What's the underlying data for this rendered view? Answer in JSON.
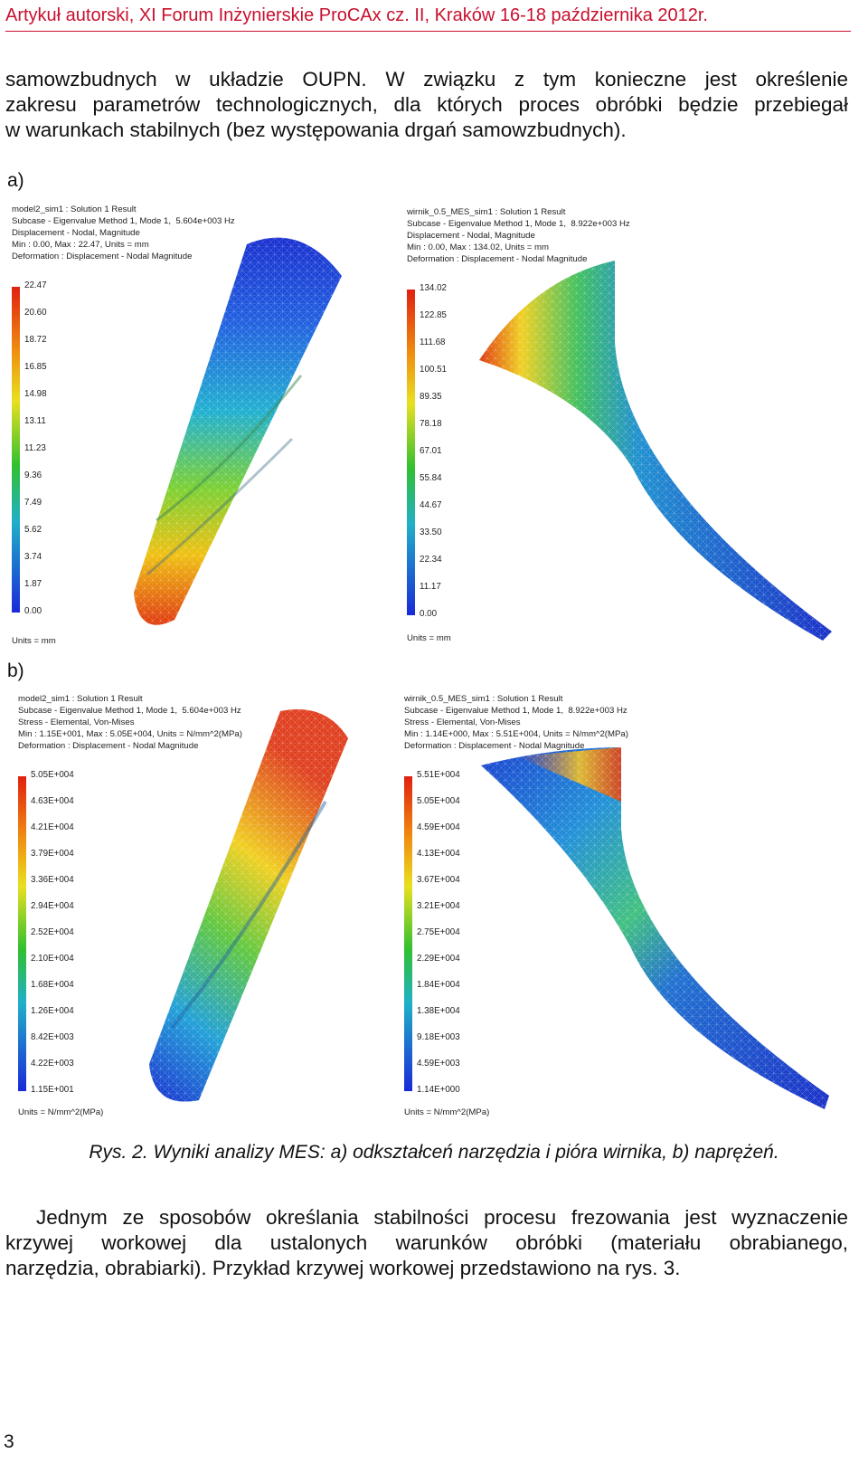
{
  "header": {
    "title": "Artykuł autorski, XI Forum Inżynierskie ProCAx cz. II, Kraków 16-18 października 2012r."
  },
  "intro_paragraph": {
    "lines": [
      "samowzbudnych w układzie OUPN. W związku z tym konieczne jest określenie",
      "zakresu parametrów technologicznych, dla których proces obróbki będzie przebiegał",
      "w warunkach stabilnych (bez występowania drgań samowzbudnych)."
    ]
  },
  "figure": {
    "label_a": "a)",
    "label_b": "b)",
    "panels": [
      {
        "id": "a-tool",
        "header": [
          "model2_sim1 : Solution 1 Result",
          "Subcase - Eigenvalue Method 1, Mode 1,  5.604e+003 Hz",
          "Displacement - Nodal, Magnitude",
          "Min : 0.00, Max : 22.47, Units = mm",
          "Deformation : Displacement - Nodal Magnitude"
        ],
        "scale": [
          "22.47",
          "20.60",
          "18.72",
          "16.85",
          "14.98",
          "13.11",
          "11.23",
          "9.36",
          "7.49",
          "5.62",
          "3.74",
          "1.87",
          "0.00"
        ],
        "units": "Units = mm"
      },
      {
        "id": "a-blade",
        "header": [
          "wirnik_0.5_MES_sim1 : Solution 1 Result",
          "Subcase - Eigenvalue Method 1, Mode 1,  8.922e+003 Hz",
          "Displacement - Nodal, Magnitude",
          "Min : 0.00, Max : 134.02, Units = mm",
          "Deformation : Displacement - Nodal Magnitude"
        ],
        "scale": [
          "134.02",
          "122.85",
          "111.68",
          "100.51",
          "89.35",
          "78.18",
          "67.01",
          "55.84",
          "44.67",
          "33.50",
          "22.34",
          "11.17",
          "0.00"
        ],
        "units": "Units = mm"
      },
      {
        "id": "b-tool",
        "header": [
          "model2_sim1 : Solution 1 Result",
          "Subcase - Eigenvalue Method 1, Mode 1,  5.604e+003 Hz",
          "Stress - Elemental, Von-Mises",
          "Min : 1.15E+001, Max : 5.05E+004, Units = N/mm^2(MPa)",
          "Deformation : Displacement - Nodal Magnitude"
        ],
        "scale": [
          "5.05E+004",
          "4.63E+004",
          "4.21E+004",
          "3.79E+004",
          "3.36E+004",
          "2.94E+004",
          "2.52E+004",
          "2.10E+004",
          "1.68E+004",
          "1.26E+004",
          "8.42E+003",
          "4.22E+003",
          "1.15E+001"
        ],
        "units": "Units = N/mm^2(MPa)"
      },
      {
        "id": "b-blade",
        "header": [
          "wirnik_0.5_MES_sim1 : Solution 1 Result",
          "Subcase - Eigenvalue Method 1, Mode 1,  8.922e+003 Hz",
          "Stress - Elemental, Von-Mises",
          "Min : 1.14E+000, Max : 5.51E+004, Units = N/mm^2(MPa)",
          "Deformation : Displacement - Nodal Magnitude"
        ],
        "scale": [
          "5.51E+004",
          "5.05E+004",
          "4.59E+004",
          "4.13E+004",
          "3.67E+004",
          "3.21E+004",
          "2.75E+004",
          "2.29E+004",
          "1.84E+004",
          "1.38E+004",
          "9.18E+003",
          "4.59E+003",
          "1.14E+000"
        ],
        "units": "Units = N/mm^2(MPa)"
      }
    ],
    "caption": "Rys. 2. Wyniki analizy MES: a) odkształceń narzędzia i pióra wirnika, b) naprężeń."
  },
  "body_paragraph": {
    "lines": [
      "Jednym ze sposobów określania stabilności procesu frezowania jest wyznaczenie",
      "krzywej workowej dla ustalonych warunków obróbki (materiału obrabianego,",
      "narzędzia, obrabiarki). Przykład krzywej workowej przedstawiono na rys. 3."
    ]
  },
  "page_number": "3",
  "colors": {
    "header": "#c8102e",
    "scale_top": "#e02010",
    "scale_mid": "#30c030",
    "scale_bottom": "#1a2ad8"
  }
}
